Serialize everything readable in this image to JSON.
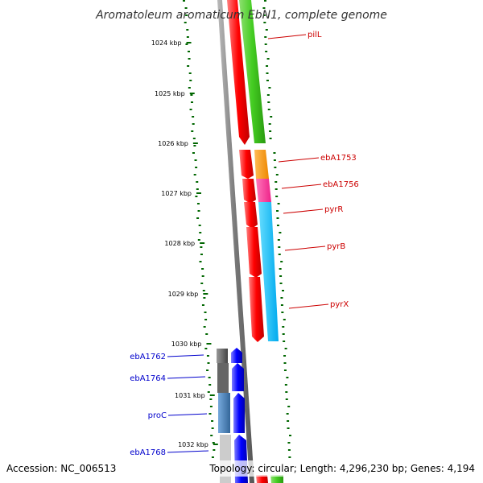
{
  "title": "Aromatoleum aromaticum EbN1, complete genome",
  "footer": {
    "accession": "Accession: NC_006513",
    "topology": "Topology: circular; Length: 4,296,230 bp; Genes: 4,194"
  },
  "ticks": [
    "1024 kbp",
    "1025 kbp",
    "1026 kbp",
    "1027 kbp",
    "1028 kbp",
    "1029 kbp",
    "1030 kbp",
    "1031 kbp",
    "1032 kbp"
  ],
  "genes_right": [
    "pilL",
    "ebA1753",
    "ebA1756",
    "pyrR",
    "pyrB",
    "pyrX"
  ],
  "genes_left": [
    "ebA1762",
    "ebA1764",
    "proC",
    "ebA1768"
  ],
  "colors": {
    "forward_strand": "#ff0000",
    "reverse_strand": "#0000ff",
    "green_band": "#44cc22",
    "orange_band": "#ff9900",
    "magenta_band": "#ff3399",
    "cyan_band": "#00bbee",
    "steel_band": "#4488bb",
    "gray_band": "#555555",
    "tick_color": "#006600"
  }
}
